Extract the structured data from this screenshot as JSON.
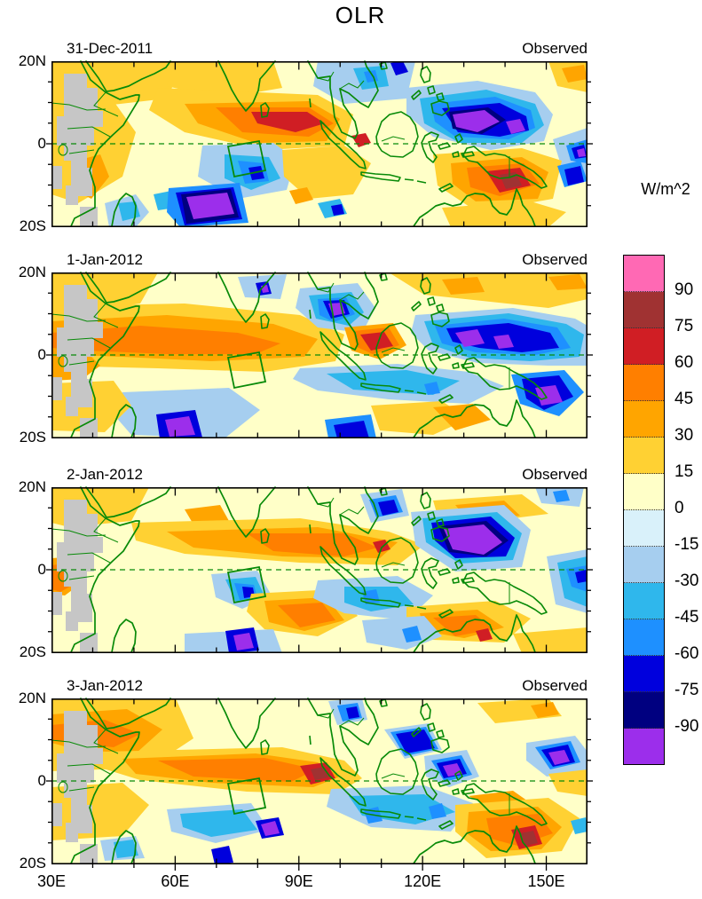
{
  "figure_title": "OLR",
  "axes": {
    "x_ticks": [
      "30E",
      "60E",
      "90E",
      "120E",
      "150E"
    ],
    "y_ticks": [
      "20N",
      "0",
      "20S"
    ]
  },
  "colorbar": {
    "title": "W/m^2",
    "tick_labels": [
      "90",
      "75",
      "60",
      "45",
      "30",
      "15",
      "0",
      "-15",
      "-30",
      "-45",
      "-60",
      "-75",
      "-90"
    ],
    "colors_top_to_bottom": [
      "#FF69B4",
      "#A03232",
      "#D01E24",
      "#FF7F00",
      "#FFA500",
      "#FFD133",
      "#FFFFC8",
      "#D9F1FA",
      "#A6CEEF",
      "#2FB7EC",
      "#1E90FF",
      "#0000DD",
      "#000080",
      "#9C2EEB"
    ]
  },
  "panels": [
    {
      "date": "31-Dec-2011",
      "source": "Observed"
    },
    {
      "date": "1-Jan-2012",
      "source": "Observed"
    },
    {
      "date": "2-Jan-2012",
      "source": "Observed"
    },
    {
      "date": "3-Jan-2012",
      "source": "Observed"
    }
  ],
  "chart_data": {
    "type": "heatmap",
    "subtype": "filled-contour longitude-latitude anomaly maps, 4-panel daily sequence",
    "title": "OLR",
    "units": "W/m^2",
    "lon_range_deg_east": [
      30,
      160
    ],
    "lat_range_deg_north": [
      -20,
      20
    ],
    "x_tick_labels": [
      "30E",
      "60E",
      "90E",
      "120E",
      "150E"
    ],
    "y_tick_labels": [
      "20N",
      "0",
      "20S"
    ],
    "contour_interval": 15,
    "contour_levels": [
      -90,
      -75,
      -60,
      -45,
      -30,
      -15,
      0,
      15,
      30,
      45,
      60,
      75,
      90
    ],
    "palette_high_to_low": [
      "#FF69B4",
      "#A03232",
      "#D01E24",
      "#FF7F00",
      "#FFA500",
      "#FFD133",
      "#FFFFC8",
      "#D9F1FA",
      "#A6CEEF",
      "#2FB7EC",
      "#1E90FF",
      "#0000DD",
      "#000080",
      "#9C2EEB"
    ],
    "legend_position": "right colorbar",
    "grid": "dashed equator line at 0 lat; green coastlines; gray mask over East African highlands; green index box ~72-80E, 0-8S in every panel",
    "panels": [
      {
        "date": "31-Dec-2011",
        "source": "Observed",
        "notable_features": [
          "positive anomaly >60 W/m^2 (red core) 80-95E near 0-7N",
          "large negative region <-75 W/m^2 with purple cores 115-145E, 8N-4S",
          "negative cells <-90 (purple) 63-73E, 13-19S",
          "positive >60 with dark-red core 128-143E, 8-17S",
          "negative spot near 155E, 8S"
        ]
      },
      {
        "date": "1-Jan-2012",
        "source": "Observed",
        "notable_features": [
          "positive band 30-95E along 0-8N (orange, >45)",
          "negative cell with purple core 93-100E, 5-12N",
          "negative band 115-155E near equator with purple cores",
          "negative <-90 cell 145-153E, 8-14S",
          "negative spots 58-62E and 98-103E near 17-20S"
        ]
      },
      {
        "date": "2-Jan-2012",
        "source": "Observed",
        "notable_features": [
          "positive band 55-100E, 2-8N",
          "strong orange at 30-34E just south of equator",
          "negative blob with large purple core 122-140E, 0-10N",
          "negative cell 73-78E, 3-8S",
          "positive 83-95E, 8-15S and 118-132E, 12-18S"
        ]
      },
      {
        "date": "3-Jan-2012",
        "source": "Observed",
        "notable_features": [
          "positive band 35-95E near equator with red core ~92-97E, 0-3N",
          "negative cells 112-118E 6-10N, 122-128E 2N-3S (purple), 148-155E 2-7N (purple)",
          "negative band 100-125E, 3-13S",
          "strong positive with dark-red core ~143E, 14S over NE Australia",
          "negative spot ~82E, 12S"
        ]
      }
    ]
  }
}
